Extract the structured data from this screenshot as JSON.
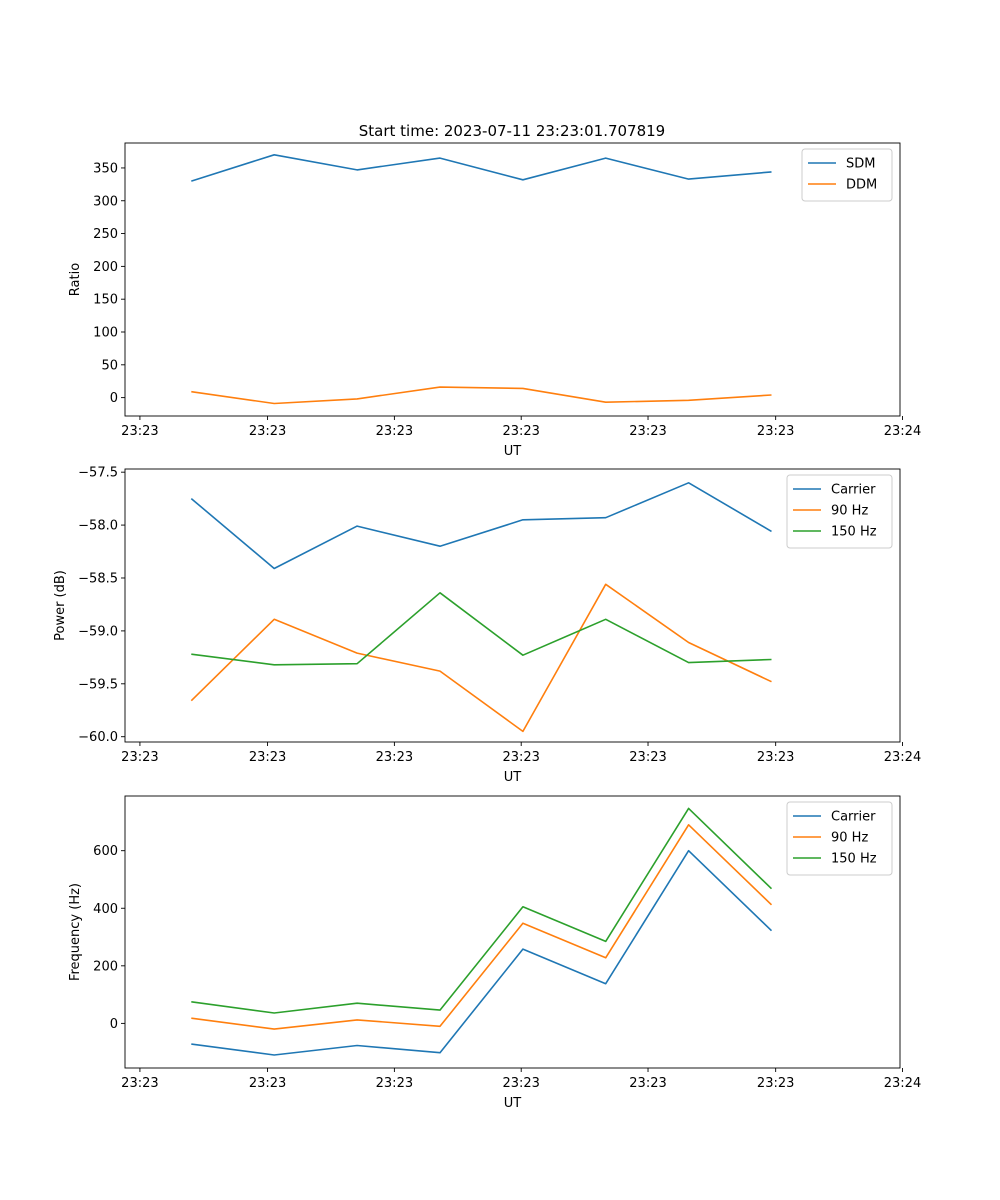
{
  "figure_title": "Start time: 2023-07-11 23:23:01.707819",
  "chart_data": [
    {
      "type": "line",
      "title": "Start time: 2023-07-11 23:23:01.707819",
      "xlabel": "UT",
      "ylabel": "Ratio",
      "x_tick_labels": [
        "23:23",
        "23:23",
        "23:23",
        "23:23",
        "23:23",
        "23:23",
        "23:24"
      ],
      "x": [
        1,
        2,
        3,
        4,
        5,
        6,
        7,
        8
      ],
      "xlim": [
        0.2,
        9.55
      ],
      "x_ticks": [
        0.38,
        1.92,
        3.45,
        4.98,
        6.51,
        8.05,
        9.58
      ],
      "ylim": [
        -28,
        388
      ],
      "y_ticks": [
        0,
        50,
        100,
        150,
        200,
        250,
        300,
        350
      ],
      "y_tick_labels": [
        "0",
        "50",
        "100",
        "150",
        "200",
        "250",
        "300",
        "350"
      ],
      "legend": "upper right",
      "series": [
        {
          "name": "SDM",
          "color": "#1f77b4",
          "values": [
            330,
            370,
            347,
            365,
            332,
            365,
            333,
            344
          ]
        },
        {
          "name": "DDM",
          "color": "#ff7f0e",
          "values": [
            9,
            -9,
            -2,
            16,
            14,
            -7,
            -4,
            4
          ]
        }
      ]
    },
    {
      "type": "line",
      "title": "",
      "xlabel": "UT",
      "ylabel": "Power (dB)",
      "x_tick_labels": [
        "23:23",
        "23:23",
        "23:23",
        "23:23",
        "23:23",
        "23:23",
        "23:24"
      ],
      "x": [
        1,
        2,
        3,
        4,
        5,
        6,
        7,
        8
      ],
      "xlim": [
        0.2,
        9.55
      ],
      "x_ticks": [
        0.38,
        1.92,
        3.45,
        4.98,
        6.51,
        8.05,
        9.58
      ],
      "ylim": [
        -60.05,
        -57.47
      ],
      "y_ticks": [
        -60.0,
        -59.5,
        -59.0,
        -58.5,
        -58.0,
        -57.5
      ],
      "y_tick_labels": [
        "−60.0",
        "−59.5",
        "−59.0",
        "−58.5",
        "−58.0",
        "−57.5"
      ],
      "legend": "upper right",
      "series": [
        {
          "name": "Carrier",
          "color": "#1f77b4",
          "values": [
            -57.75,
            -58.41,
            -58.01,
            -58.2,
            -57.95,
            -57.93,
            -57.6,
            -58.06
          ]
        },
        {
          "name": "90 Hz",
          "color": "#ff7f0e",
          "values": [
            -59.66,
            -58.89,
            -59.21,
            -59.38,
            -59.95,
            -58.56,
            -59.11,
            -59.48
          ]
        },
        {
          "name": "150 Hz",
          "color": "#2ca02c",
          "values": [
            -59.22,
            -59.32,
            -59.31,
            -58.64,
            -59.23,
            -58.89,
            -59.3,
            -59.27
          ]
        }
      ]
    },
    {
      "type": "line",
      "title": "",
      "xlabel": "UT",
      "ylabel": "Frequency (Hz)",
      "x_tick_labels": [
        "23:23",
        "23:23",
        "23:23",
        "23:23",
        "23:23",
        "23:23",
        "23:24"
      ],
      "x": [
        1,
        2,
        3,
        4,
        5,
        6,
        7,
        8
      ],
      "xlim": [
        0.2,
        9.55
      ],
      "x_ticks": [
        0.38,
        1.92,
        3.45,
        4.98,
        6.51,
        8.05,
        9.58
      ],
      "ylim": [
        -155,
        790
      ],
      "y_ticks": [
        0,
        200,
        400,
        600
      ],
      "y_tick_labels": [
        "0",
        "200",
        "400",
        "600"
      ],
      "legend": "upper right",
      "series": [
        {
          "name": "Carrier",
          "color": "#1f77b4",
          "values": [
            -72,
            -110,
            -77,
            -102,
            258,
            138,
            600,
            322
          ]
        },
        {
          "name": "90 Hz",
          "color": "#ff7f0e",
          "values": [
            18,
            -20,
            12,
            -10,
            348,
            228,
            690,
            412
          ]
        },
        {
          "name": "150 Hz",
          "color": "#2ca02c",
          "values": [
            75,
            36,
            70,
            46,
            405,
            285,
            747,
            468
          ]
        }
      ]
    }
  ]
}
